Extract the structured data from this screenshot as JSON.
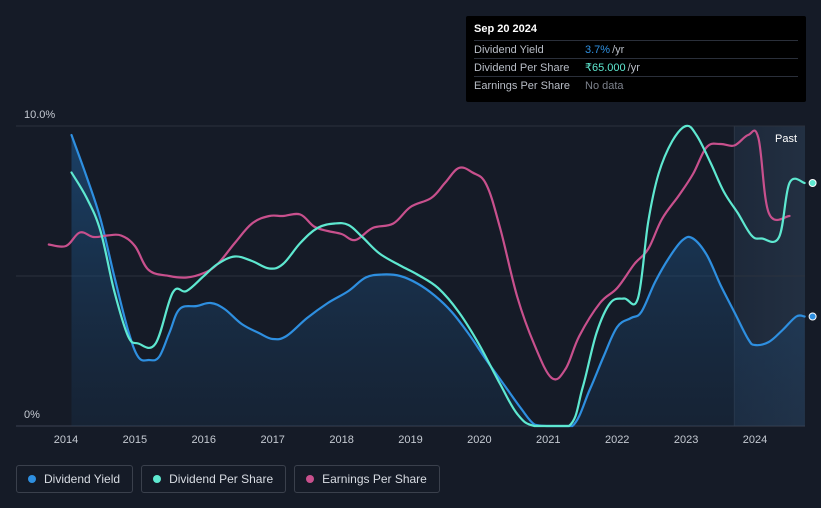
{
  "chart_data": {
    "type": "line",
    "x_ticks": [
      "2014",
      "2015",
      "2016",
      "2017",
      "2018",
      "2019",
      "2020",
      "2021",
      "2022",
      "2023",
      "2024"
    ],
    "y_ticks": [
      "10.0%",
      "0%"
    ],
    "ylim": [
      0,
      10
    ],
    "xlim": [
      2013.7,
      2024.7
    ],
    "past_label": "Past",
    "past_start": 2023.7,
    "series": [
      {
        "name": "Dividend Yield",
        "color": "#2e8fe0",
        "filled": true,
        "points": [
          [
            2014.08,
            9.7
          ],
          [
            2014.3,
            8.3
          ],
          [
            2014.5,
            6.9
          ],
          [
            2014.7,
            5.0
          ],
          [
            2014.9,
            3.2
          ],
          [
            2015.05,
            2.3
          ],
          [
            2015.2,
            2.2
          ],
          [
            2015.35,
            2.3
          ],
          [
            2015.5,
            3.1
          ],
          [
            2015.65,
            3.9
          ],
          [
            2015.9,
            4.0
          ],
          [
            2016.1,
            4.1
          ],
          [
            2016.3,
            3.9
          ],
          [
            2016.55,
            3.4
          ],
          [
            2016.8,
            3.1
          ],
          [
            2017.0,
            2.9
          ],
          [
            2017.2,
            3.0
          ],
          [
            2017.5,
            3.6
          ],
          [
            2017.8,
            4.1
          ],
          [
            2018.1,
            4.5
          ],
          [
            2018.35,
            4.95
          ],
          [
            2018.6,
            5.05
          ],
          [
            2018.85,
            5.0
          ],
          [
            2019.1,
            4.75
          ],
          [
            2019.35,
            4.35
          ],
          [
            2019.6,
            3.8
          ],
          [
            2019.85,
            3.05
          ],
          [
            2020.1,
            2.2
          ],
          [
            2020.35,
            1.4
          ],
          [
            2020.6,
            0.6
          ],
          [
            2020.8,
            0.05
          ],
          [
            2021.0,
            0.0
          ],
          [
            2021.35,
            0.0
          ],
          [
            2021.6,
            1.2
          ],
          [
            2021.8,
            2.3
          ],
          [
            2022.0,
            3.3
          ],
          [
            2022.2,
            3.6
          ],
          [
            2022.35,
            3.8
          ],
          [
            2022.55,
            4.8
          ],
          [
            2022.75,
            5.6
          ],
          [
            2022.95,
            6.2
          ],
          [
            2023.1,
            6.25
          ],
          [
            2023.3,
            5.7
          ],
          [
            2023.5,
            4.7
          ],
          [
            2023.7,
            3.8
          ],
          [
            2023.9,
            2.9
          ],
          [
            2024.0,
            2.7
          ],
          [
            2024.2,
            2.8
          ],
          [
            2024.4,
            3.2
          ],
          [
            2024.6,
            3.65
          ],
          [
            2024.72,
            3.65
          ]
        ]
      },
      {
        "name": "Dividend Per Share",
        "color": "#5ee8d0",
        "filled": false,
        "points": [
          [
            2014.08,
            8.45
          ],
          [
            2014.3,
            7.6
          ],
          [
            2014.5,
            6.5
          ],
          [
            2014.7,
            4.5
          ],
          [
            2014.9,
            3.0
          ],
          [
            2015.05,
            2.75
          ],
          [
            2015.3,
            2.75
          ],
          [
            2015.55,
            4.45
          ],
          [
            2015.75,
            4.5
          ],
          [
            2016.0,
            5.0
          ],
          [
            2016.2,
            5.4
          ],
          [
            2016.45,
            5.65
          ],
          [
            2016.7,
            5.5
          ],
          [
            2016.95,
            5.25
          ],
          [
            2017.15,
            5.4
          ],
          [
            2017.4,
            6.1
          ],
          [
            2017.65,
            6.6
          ],
          [
            2017.9,
            6.75
          ],
          [
            2018.1,
            6.7
          ],
          [
            2018.3,
            6.3
          ],
          [
            2018.55,
            5.75
          ],
          [
            2018.85,
            5.35
          ],
          [
            2019.1,
            5.05
          ],
          [
            2019.4,
            4.6
          ],
          [
            2019.7,
            3.8
          ],
          [
            2020.0,
            2.7
          ],
          [
            2020.3,
            1.4
          ],
          [
            2020.55,
            0.4
          ],
          [
            2020.8,
            0.0
          ],
          [
            2021.3,
            0.0
          ],
          [
            2021.5,
            1.3
          ],
          [
            2021.7,
            3.1
          ],
          [
            2021.9,
            4.1
          ],
          [
            2022.1,
            4.25
          ],
          [
            2022.3,
            4.25
          ],
          [
            2022.45,
            6.8
          ],
          [
            2022.6,
            8.4
          ],
          [
            2022.8,
            9.5
          ],
          [
            2023.0,
            10.0
          ],
          [
            2023.15,
            9.7
          ],
          [
            2023.35,
            8.8
          ],
          [
            2023.55,
            7.8
          ],
          [
            2023.75,
            7.1
          ],
          [
            2023.95,
            6.35
          ],
          [
            2024.1,
            6.25
          ],
          [
            2024.35,
            6.3
          ],
          [
            2024.5,
            8.1
          ],
          [
            2024.72,
            8.1
          ]
        ]
      },
      {
        "name": "Earnings Per Share",
        "color": "#c8508d",
        "filled": false,
        "points": [
          [
            2013.75,
            6.05
          ],
          [
            2014.0,
            6.0
          ],
          [
            2014.2,
            6.45
          ],
          [
            2014.4,
            6.3
          ],
          [
            2014.6,
            6.35
          ],
          [
            2014.8,
            6.35
          ],
          [
            2015.0,
            6.0
          ],
          [
            2015.2,
            5.2
          ],
          [
            2015.5,
            5.0
          ],
          [
            2015.75,
            4.95
          ],
          [
            2016.0,
            5.1
          ],
          [
            2016.2,
            5.4
          ],
          [
            2016.45,
            6.1
          ],
          [
            2016.7,
            6.75
          ],
          [
            2016.95,
            7.0
          ],
          [
            2017.15,
            7.0
          ],
          [
            2017.4,
            7.05
          ],
          [
            2017.6,
            6.65
          ],
          [
            2017.8,
            6.5
          ],
          [
            2018.0,
            6.4
          ],
          [
            2018.2,
            6.2
          ],
          [
            2018.45,
            6.6
          ],
          [
            2018.75,
            6.75
          ],
          [
            2019.0,
            7.3
          ],
          [
            2019.3,
            7.6
          ],
          [
            2019.5,
            8.1
          ],
          [
            2019.7,
            8.6
          ],
          [
            2019.9,
            8.45
          ],
          [
            2020.1,
            8.05
          ],
          [
            2020.3,
            6.6
          ],
          [
            2020.55,
            4.3
          ],
          [
            2020.8,
            2.7
          ],
          [
            2021.05,
            1.6
          ],
          [
            2021.25,
            1.9
          ],
          [
            2021.45,
            3.0
          ],
          [
            2021.75,
            4.1
          ],
          [
            2022.0,
            4.6
          ],
          [
            2022.25,
            5.4
          ],
          [
            2022.45,
            5.9
          ],
          [
            2022.65,
            6.9
          ],
          [
            2022.9,
            7.7
          ],
          [
            2023.1,
            8.4
          ],
          [
            2023.3,
            9.3
          ],
          [
            2023.5,
            9.4
          ],
          [
            2023.7,
            9.35
          ],
          [
            2023.9,
            9.7
          ],
          [
            2024.05,
            9.6
          ],
          [
            2024.2,
            7.1
          ],
          [
            2024.5,
            7.0
          ]
        ]
      }
    ],
    "end_markers": [
      "Dividend Yield",
      "Dividend Per Share"
    ]
  },
  "tooltip": {
    "date": "Sep 20 2024",
    "rows": [
      {
        "label": "Dividend Yield",
        "value": "3.7%",
        "unit": "/yr",
        "color": "#2e8fe0"
      },
      {
        "label": "Dividend Per Share",
        "value": "₹65.000",
        "unit": "/yr",
        "color": "#5ee8d0"
      },
      {
        "label": "Earnings Per Share",
        "value": "No data",
        "unit": "",
        "color": "#7d828c"
      }
    ]
  },
  "legend": [
    {
      "label": "Dividend Yield",
      "color": "#2e8fe0"
    },
    {
      "label": "Dividend Per Share",
      "color": "#5ee8d0"
    },
    {
      "label": "Earnings Per Share",
      "color": "#c8508d"
    }
  ]
}
